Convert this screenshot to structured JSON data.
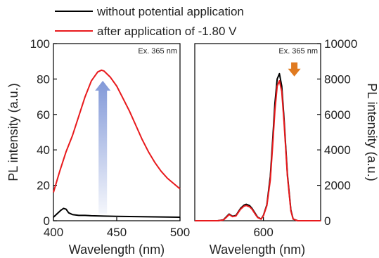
{
  "chart_data": [
    {
      "type": "line",
      "panel": "left",
      "annotation": "Ex. 365 nm",
      "xlabel": "Wavelength (nm)",
      "ylabel": "PL intensity (a.u.)",
      "xlim": [
        400,
        500
      ],
      "ylim": [
        0,
        100
      ],
      "xticks": [
        400,
        450,
        500
      ],
      "yticks": [
        0,
        20,
        40,
        60,
        80,
        100
      ],
      "arrow": {
        "from": [
          439,
          4
        ],
        "to": [
          439,
          79
        ],
        "color": "#7b93d6",
        "direction": "up"
      },
      "series": [
        {
          "name": "without potential application",
          "color": "#000000",
          "x": [
            400,
            403,
            406,
            408,
            410,
            412,
            415,
            420,
            425,
            430,
            440,
            450,
            460,
            470,
            480,
            490,
            500
          ],
          "y": [
            2,
            4,
            6,
            7,
            6.5,
            4.5,
            3.5,
            3,
            3,
            2.8,
            2.6,
            2.5,
            2.4,
            2.3,
            2.2,
            2.1,
            2
          ]
        },
        {
          "name": "after application of -1.80 V",
          "color": "#e8191c",
          "x": [
            400,
            405,
            410,
            415,
            420,
            425,
            430,
            435,
            438,
            440,
            445,
            450,
            455,
            460,
            465,
            470,
            475,
            480,
            485,
            490,
            495,
            500
          ],
          "y": [
            16,
            28,
            39,
            48,
            59,
            70,
            79,
            84,
            85,
            84.5,
            81,
            76,
            69,
            62,
            54,
            46,
            39,
            33,
            28,
            24,
            21,
            18
          ]
        }
      ]
    },
    {
      "type": "line",
      "panel": "right",
      "annotation": "Ex. 365 nm",
      "xlabel": "Wavelength (nm)",
      "ylabel": "PL intensity (a.u.)",
      "xlim": [
        540,
        650
      ],
      "ylim": [
        0,
        10000
      ],
      "xticks": [
        600
      ],
      "yticks": [
        0,
        2000,
        4000,
        6000,
        8000,
        10000
      ],
      "arrow": {
        "at": [
          627,
          8500
        ],
        "color": "#e07a20",
        "direction": "down"
      },
      "series": [
        {
          "name": "without potential application",
          "color": "#000000",
          "x": [
            540,
            560,
            565,
            568,
            570,
            573,
            576,
            580,
            583,
            585,
            588,
            590,
            593,
            595,
            598,
            600,
            603,
            606,
            608,
            610,
            612,
            614,
            616,
            618,
            621,
            624,
            626,
            630,
            640,
            650
          ],
          "y": [
            0,
            0,
            50,
            250,
            380,
            250,
            300,
            700,
            880,
            930,
            850,
            700,
            400,
            200,
            100,
            300,
            900,
            2500,
            4500,
            6600,
            8000,
            8300,
            7600,
            5800,
            2600,
            600,
            100,
            0,
            0,
            0
          ]
        },
        {
          "name": "after application of -1.80 V",
          "color": "#e8191c",
          "x": [
            540,
            560,
            565,
            568,
            570,
            573,
            576,
            580,
            583,
            585,
            588,
            590,
            593,
            595,
            598,
            600,
            603,
            606,
            608,
            610,
            612,
            614,
            616,
            618,
            621,
            624,
            626,
            630,
            640,
            650
          ],
          "y": [
            0,
            0,
            40,
            220,
            350,
            230,
            270,
            650,
            820,
            860,
            780,
            650,
            360,
            180,
            90,
            280,
            850,
            2300,
            4200,
            6200,
            7600,
            7900,
            7300,
            5600,
            2500,
            550,
            90,
            0,
            0,
            0
          ]
        }
      ]
    }
  ],
  "legend": [
    {
      "label": "without potential application",
      "color": "#000000"
    },
    {
      "label": "after application of -1.80 V",
      "color": "#e8191c"
    }
  ]
}
